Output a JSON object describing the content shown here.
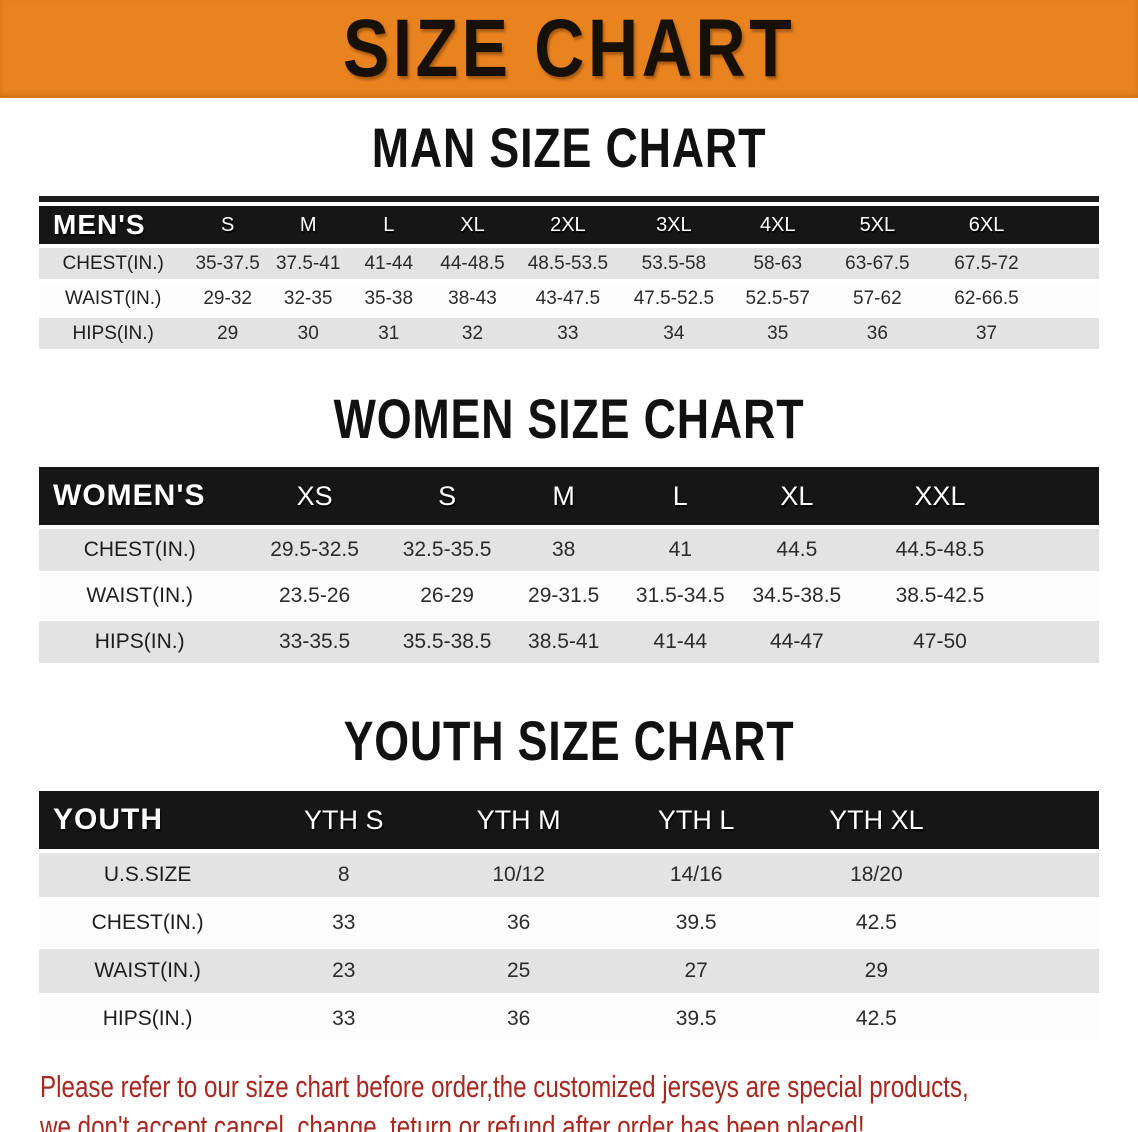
{
  "banner": {
    "title": "SIZE CHART"
  },
  "colors": {
    "banner_bg": "#E8831F",
    "table_header_bg": "#161616",
    "row_stripe": "#E3E3E3",
    "footer_text": "#A8271F"
  },
  "sections": [
    {
      "id": "men",
      "heading": "MAN SIZE CHART",
      "group_label": "MEN'S",
      "columns": [
        "S",
        "M",
        "L",
        "XL",
        "2XL",
        "3XL",
        "4XL",
        "5XL",
        "6XL"
      ],
      "rows": [
        {
          "label": "CHEST(IN.)",
          "values": [
            "35-37.5",
            "37.5-41",
            "41-44",
            "44-48.5",
            "48.5-53.5",
            "53.5-58",
            "58-63",
            "63-67.5",
            "67.5-72"
          ]
        },
        {
          "label": "WAIST(IN.)",
          "values": [
            "29-32",
            "32-35",
            "35-38",
            "38-43",
            "43-47.5",
            "47.5-52.5",
            "52.5-57",
            "57-62",
            "62-66.5"
          ]
        },
        {
          "label": "HIPS(IN.)",
          "values": [
            "29",
            "30",
            "31",
            "32",
            "33",
            "34",
            "35",
            "36",
            "37"
          ]
        }
      ]
    },
    {
      "id": "women",
      "heading": "WOMEN SIZE CHART",
      "group_label": "WOMEN'S",
      "columns": [
        "XS",
        "S",
        "M",
        "L",
        "XL",
        "XXL"
      ],
      "rows": [
        {
          "label": "CHEST(IN.)",
          "values": [
            "29.5-32.5",
            "32.5-35.5",
            "38",
            "41",
            "44.5",
            "44.5-48.5"
          ]
        },
        {
          "label": "WAIST(IN.)",
          "values": [
            "23.5-26",
            "26-29",
            "29-31.5",
            "31.5-34.5",
            "34.5-38.5",
            "38.5-42.5"
          ]
        },
        {
          "label": "HIPS(IN.)",
          "values": [
            "33-35.5",
            "35.5-38.5",
            "38.5-41",
            "41-44",
            "44-47",
            "47-50"
          ]
        }
      ]
    },
    {
      "id": "youth",
      "heading": "YOUTH SIZE CHART",
      "group_label": "YOUTH",
      "columns": [
        "YTH S",
        "YTH M",
        "YTH L",
        "YTH XL"
      ],
      "rows": [
        {
          "label": "U.S.SIZE",
          "values": [
            "8",
            "10/12",
            "14/16",
            "18/20"
          ]
        },
        {
          "label": "CHEST(IN.)",
          "values": [
            "33",
            "36",
            "39.5",
            "42.5"
          ]
        },
        {
          "label": "WAIST(IN.)",
          "values": [
            "23",
            "25",
            "27",
            "29"
          ]
        },
        {
          "label": "HIPS(IN.)",
          "values": [
            "33",
            "36",
            "39.5",
            "42.5"
          ]
        }
      ]
    }
  ],
  "footer": {
    "line1": "Please refer to our size chart before order,the customized jerseys are special products,",
    "line2": "we don't accept cancel, change, teturn or refund after order has been placed!"
  }
}
